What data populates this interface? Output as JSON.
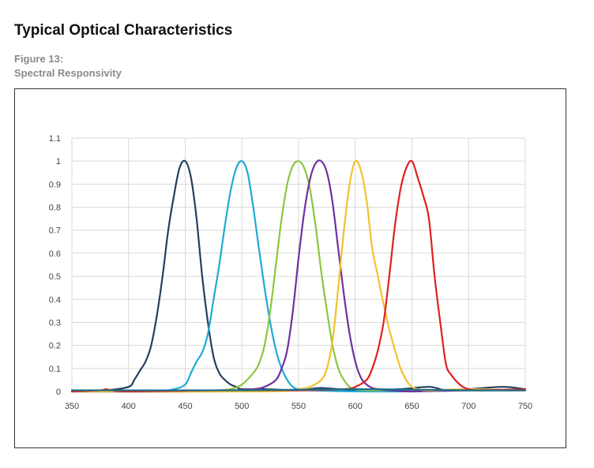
{
  "page": {
    "title": "Typical Optical Characteristics",
    "figure_number": "Figure 13:",
    "figure_title": "Spectral Responsivity"
  },
  "chart_data": {
    "type": "line",
    "title": "",
    "xlabel": "",
    "ylabel": "",
    "xlim": [
      350,
      750
    ],
    "ylim": [
      0,
      1.1
    ],
    "x_ticks": [
      350,
      400,
      450,
      500,
      550,
      600,
      650,
      700,
      750
    ],
    "y_ticks": [
      "0",
      "0.1",
      "0.2",
      "0.3",
      "0.4",
      "0.5",
      "0.6",
      "0.7",
      "0.8",
      "0.9",
      "1",
      "1.1"
    ],
    "grid": true,
    "legend": "none",
    "series": [
      {
        "color": "#243f60",
        "x": [
          350,
          380,
          400,
          405,
          410,
          415,
          420,
          425,
          430,
          435,
          440,
          445,
          450,
          455,
          460,
          465,
          470,
          475,
          480,
          485,
          490,
          495,
          500,
          520,
          550,
          570,
          600,
          640,
          665,
          680,
          700,
          730,
          750
        ],
        "y": [
          0.0,
          0.005,
          0.02,
          0.05,
          0.09,
          0.13,
          0.2,
          0.33,
          0.5,
          0.7,
          0.85,
          0.97,
          1.0,
          0.93,
          0.75,
          0.5,
          0.3,
          0.15,
          0.08,
          0.05,
          0.03,
          0.02,
          0.01,
          0.01,
          0.005,
          0.015,
          0.005,
          0.01,
          0.02,
          0.005,
          0.01,
          0.02,
          0.01
        ]
      },
      {
        "color": "#1faad6",
        "x": [
          350,
          420,
          440,
          450,
          455,
          460,
          465,
          470,
          475,
          480,
          485,
          490,
          495,
          500,
          505,
          510,
          515,
          520,
          525,
          530,
          535,
          540,
          545,
          550,
          560,
          600,
          650,
          700,
          750
        ],
        "y": [
          0.0,
          0.0,
          0.01,
          0.03,
          0.08,
          0.13,
          0.17,
          0.25,
          0.4,
          0.55,
          0.72,
          0.87,
          0.97,
          1.0,
          0.95,
          0.8,
          0.62,
          0.45,
          0.3,
          0.18,
          0.1,
          0.05,
          0.02,
          0.01,
          0.005,
          0.0,
          0.0,
          0.005,
          0.005
        ]
      },
      {
        "color": "#8cc63f",
        "x": [
          350,
          450,
          480,
          490,
          500,
          510,
          515,
          520,
          525,
          530,
          535,
          540,
          545,
          550,
          555,
          560,
          565,
          570,
          575,
          580,
          585,
          590,
          595,
          600,
          610,
          650,
          700,
          750
        ],
        "y": [
          0.0,
          0.0,
          0.005,
          0.01,
          0.03,
          0.08,
          0.12,
          0.2,
          0.35,
          0.55,
          0.75,
          0.9,
          0.98,
          1.0,
          0.97,
          0.88,
          0.72,
          0.52,
          0.35,
          0.2,
          0.1,
          0.05,
          0.02,
          0.01,
          0.005,
          0.005,
          0.005,
          0.005
        ]
      },
      {
        "color": "#7030a0",
        "x": [
          350,
          480,
          510,
          520,
          530,
          535,
          540,
          545,
          550,
          555,
          560,
          565,
          570,
          575,
          580,
          585,
          590,
          595,
          600,
          605,
          610,
          615,
          620,
          630,
          650,
          700,
          750
        ],
        "y": [
          0.0,
          0.0,
          0.01,
          0.02,
          0.05,
          0.1,
          0.18,
          0.35,
          0.58,
          0.78,
          0.92,
          0.99,
          1.0,
          0.95,
          0.82,
          0.62,
          0.42,
          0.25,
          0.13,
          0.06,
          0.03,
          0.015,
          0.01,
          0.005,
          0.0,
          0.005,
          0.005
        ]
      },
      {
        "color": "#f2c12e",
        "x": [
          350,
          520,
          550,
          560,
          570,
          575,
          580,
          585,
          590,
          595,
          600,
          605,
          610,
          615,
          620,
          625,
          630,
          635,
          640,
          645,
          650,
          655,
          660,
          670,
          700,
          750
        ],
        "y": [
          0.0,
          0.0,
          0.01,
          0.02,
          0.05,
          0.1,
          0.22,
          0.45,
          0.7,
          0.9,
          1.0,
          0.96,
          0.83,
          0.62,
          0.5,
          0.38,
          0.27,
          0.18,
          0.1,
          0.05,
          0.02,
          0.01,
          0.005,
          0.005,
          0.01,
          0.005
        ]
      },
      {
        "color": "#e02020",
        "x": [
          350,
          375,
          380,
          385,
          400,
          480,
          550,
          590,
          600,
          610,
          615,
          620,
          625,
          630,
          635,
          640,
          645,
          650,
          655,
          660,
          665,
          670,
          675,
          680,
          685,
          690,
          695,
          700,
          710,
          750
        ],
        "y": [
          0.0,
          0.005,
          0.01,
          0.005,
          0.0,
          0.005,
          0.005,
          0.01,
          0.02,
          0.05,
          0.1,
          0.18,
          0.3,
          0.5,
          0.72,
          0.88,
          0.97,
          1.0,
          0.93,
          0.85,
          0.75,
          0.5,
          0.3,
          0.12,
          0.07,
          0.04,
          0.02,
          0.01,
          0.005,
          0.01
        ]
      },
      {
        "color": "#1f6f8b",
        "x": [
          350,
          500,
          600,
          700,
          750
        ],
        "y": [
          0.005,
          0.005,
          0.01,
          0.005,
          0.005
        ]
      }
    ]
  }
}
